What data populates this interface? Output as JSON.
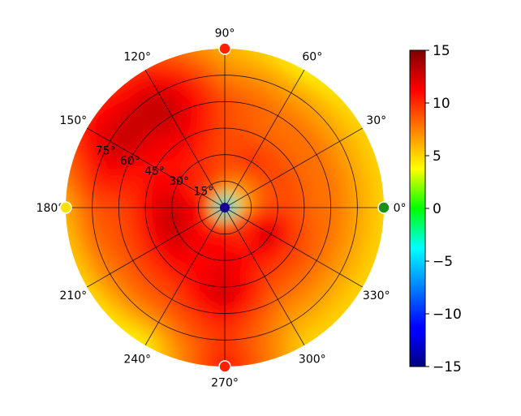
{
  "chart_data": {
    "type": "heatmap",
    "projection": "polar",
    "title": "",
    "angle_ticks": [
      "0°",
      "30°",
      "60°",
      "90°",
      "120°",
      "150°",
      "180°",
      "210°",
      "240°",
      "270°",
      "300°",
      "330°"
    ],
    "radial_ticks": [
      "15°",
      "30°",
      "45°",
      "60°",
      "75°"
    ],
    "radial_tick_values": [
      15,
      30,
      45,
      60,
      75
    ],
    "r_range": [
      0,
      90
    ],
    "grid": true,
    "colormap": "jet",
    "colorbar": {
      "range": [
        -15,
        15
      ],
      "ticks": [
        "15",
        "10",
        "5",
        "0",
        "−5",
        "−10",
        "−15"
      ],
      "tick_values": [
        15,
        10,
        5,
        0,
        -5,
        -10,
        -15
      ],
      "placement": "right"
    },
    "values_by_angle_and_radius": {
      "radius_samples": [
        0,
        10,
        20,
        30,
        40,
        50,
        60,
        70,
        80,
        90
      ],
      "angle_samples": [
        0,
        30,
        60,
        90,
        120,
        150,
        180,
        210,
        240,
        270,
        300,
        330
      ],
      "values": [
        [
          -12,
          5,
          9,
          9,
          9,
          8,
          8,
          7,
          6,
          5
        ],
        [
          -12,
          6,
          8,
          9,
          9,
          8,
          8,
          7,
          6,
          5
        ],
        [
          -12,
          6,
          8,
          10,
          9,
          8,
          8,
          7,
          6,
          4
        ],
        [
          -12,
          6,
          9,
          9,
          9,
          9,
          9,
          8,
          7,
          6
        ],
        [
          -12,
          8,
          10,
          10,
          11,
          12,
          13,
          13,
          12,
          10
        ],
        [
          -12,
          9,
          10,
          11,
          11,
          11,
          12,
          13,
          12,
          11
        ],
        [
          -12,
          11,
          12,
          13,
          12,
          10,
          9,
          9,
          8,
          6
        ],
        [
          -12,
          10,
          11,
          13,
          12,
          10,
          9,
          8,
          7,
          5
        ],
        [
          -12,
          10,
          11,
          11,
          11,
          10,
          9,
          8,
          6,
          4
        ],
        [
          -12,
          10,
          11,
          12,
          12,
          13,
          11,
          10,
          10,
          11
        ],
        [
          -12,
          9,
          10,
          11,
          10,
          9,
          8,
          7,
          6,
          5
        ],
        [
          -12,
          9,
          11,
          13,
          10,
          9,
          8,
          7,
          6,
          5
        ]
      ]
    },
    "markers": [
      {
        "angle": 0,
        "r": 90,
        "color": "#1a8f1a"
      },
      {
        "angle": 90,
        "r": 90,
        "color": "#ff2000"
      },
      {
        "angle": 180,
        "r": 90,
        "color": "#ffe000"
      },
      {
        "angle": 270,
        "r": 90,
        "color": "#ff2000"
      },
      {
        "angle": 0,
        "r": 0,
        "color": "#1a0090"
      }
    ]
  }
}
